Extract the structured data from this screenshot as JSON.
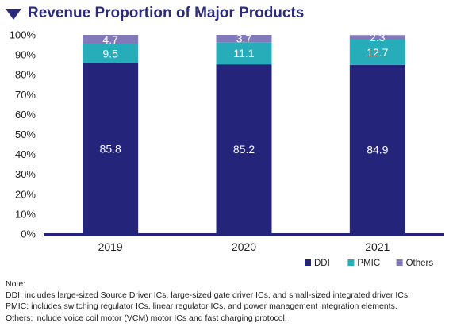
{
  "header": {
    "title": "Revenue Proportion of Major Products",
    "icon": "triangle-down-icon"
  },
  "chart_data": {
    "type": "bar",
    "stacked": true,
    "title": "Revenue Proportion of Major Products",
    "xlabel": "",
    "ylabel": "",
    "categories": [
      "2019",
      "2020",
      "2021"
    ],
    "ylim": [
      0,
      100
    ],
    "y_ticks": [
      "0%",
      "10%",
      "20%",
      "30%",
      "40%",
      "50%",
      "60%",
      "70%",
      "80%",
      "90%",
      "100%"
    ],
    "grid": false,
    "legend_position": "bottom-right",
    "series": [
      {
        "name": "DDI",
        "values": [
          85.8,
          85.2,
          84.9
        ],
        "color": "#24247a",
        "label_color": "#ffffff"
      },
      {
        "name": "PMIC",
        "values": [
          9.5,
          11.1,
          12.7
        ],
        "color": "#27adb9",
        "label_color": "#ffffff"
      },
      {
        "name": "Others",
        "values": [
          4.7,
          3.7,
          2.3
        ],
        "color": "#8179b9",
        "label_color": "#ffffff"
      }
    ]
  },
  "notes": {
    "heading": "Note:",
    "lines": [
      "DDI: includes large-sized Source Driver ICs, large-sized gate driver ICs, and small-sized integrated driver ICs.",
      "PMIC: includes switching regulator ICs, linear regulator ICs, and power management integration elements.",
      "Others: include voice coil motor (VCM) motor ICs and fast charging protocol."
    ]
  }
}
